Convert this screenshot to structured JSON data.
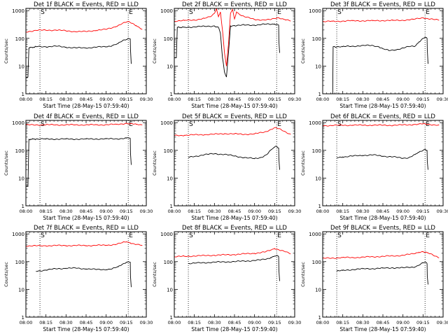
{
  "chart_data": [
    {
      "type": "line",
      "title": "Det 1f BLACK = Events, RED = LLD",
      "ylabel": "Counts/sec",
      "xlabel": "Start Time (28-May-15 07:59:40)",
      "x_ticks": [
        "08:00",
        "08:15",
        "08:30",
        "08:45",
        "09:00",
        "09:15",
        "09:30"
      ],
      "y_ticks": [
        "1",
        "10",
        "100",
        "1000"
      ],
      "yscale": "log",
      "ylim": [
        1,
        1200
      ],
      "xlim": [
        0,
        60
      ],
      "markers": [
        {
          "x": 7,
          "label": "S"
        },
        {
          "x": 51,
          "label": "E"
        }
      ],
      "series": [
        {
          "color": "#ff0000",
          "x": [
            0,
            5,
            10,
            15,
            20,
            25,
            30,
            35,
            40,
            45,
            48,
            51,
            53,
            55,
            58
          ],
          "values": [
            170,
            195,
            195,
            200,
            185,
            175,
            175,
            195,
            210,
            270,
            340,
            400,
            350,
            290,
            210
          ]
        },
        {
          "color": "#000000",
          "x": [
            0,
            1,
            1.5,
            5,
            10,
            15,
            20,
            25,
            30,
            35,
            40,
            43,
            46,
            48,
            50,
            51,
            52,
            52.1,
            52.5
          ],
          "values": [
            4,
            4,
            45,
            50,
            50,
            52,
            48,
            45,
            45,
            48,
            50,
            55,
            65,
            80,
            90,
            100,
            95,
            40,
            12
          ]
        }
      ]
    },
    {
      "type": "line",
      "title": "Det 2f BLACK = Events, RED = LLD",
      "ylabel": "Counts/sec",
      "xlabel": "Start Time (28-May-15 07:59:40)",
      "x_ticks": [
        "08:00",
        "08:15",
        "08:30",
        "08:45",
        "09:00",
        "09:15",
        "09:30"
      ],
      "y_ticks": [
        "1",
        "10",
        "100",
        "1000"
      ],
      "yscale": "log",
      "ylim": [
        1,
        1200
      ],
      "xlim": [
        0,
        60
      ],
      "markers": [
        {
          "x": 7,
          "label": "S"
        },
        {
          "x": 51,
          "label": "E"
        }
      ],
      "series": [
        {
          "color": "#ff0000",
          "x": [
            0,
            5,
            10,
            15,
            18,
            20,
            21,
            22,
            23,
            24,
            25,
            26,
            27,
            28,
            29,
            30,
            31,
            33,
            35,
            40,
            45,
            48,
            50,
            52,
            55,
            58
          ],
          "values": [
            420,
            440,
            460,
            520,
            600,
            800,
            1200,
            600,
            900,
            200,
            30,
            10,
            60,
            800,
            1100,
            500,
            900,
            700,
            600,
            480,
            460,
            470,
            520,
            560,
            480,
            420
          ]
        },
        {
          "color": "#000000",
          "x": [
            0,
            1,
            1.5,
            5,
            10,
            15,
            20,
            21,
            22,
            23,
            24,
            25,
            26,
            27,
            28,
            30,
            35,
            40,
            45,
            50,
            51,
            52,
            52.1,
            52.5
          ],
          "values": [
            20,
            20,
            250,
            250,
            260,
            270,
            280,
            260,
            250,
            150,
            20,
            6,
            4,
            30,
            280,
            290,
            300,
            300,
            320,
            330,
            320,
            300,
            80,
            30
          ]
        }
      ]
    },
    {
      "type": "line",
      "title": "Det 3f BLACK = Events, RED = LLD",
      "ylabel": "Counts/sec",
      "xlabel": "Start Time (28-May-15 07:59:40)",
      "x_ticks": [
        "08:00",
        "08:15",
        "08:30",
        "08:45",
        "09:00",
        "09:15",
        "09:30"
      ],
      "y_ticks": [
        "1",
        "10",
        "100",
        "1000"
      ],
      "yscale": "log",
      "ylim": [
        1,
        1200
      ],
      "xlim": [
        0,
        60
      ],
      "markers": [
        {
          "x": 7,
          "label": "S"
        },
        {
          "x": 51,
          "label": "E"
        }
      ],
      "series": [
        {
          "color": "#ff0000",
          "x": [
            0,
            5,
            10,
            15,
            20,
            25,
            30,
            35,
            40,
            45,
            48,
            50,
            52,
            55,
            58
          ],
          "values": [
            400,
            410,
            420,
            430,
            430,
            430,
            440,
            440,
            450,
            480,
            520,
            560,
            520,
            480,
            450
          ]
        },
        {
          "color": "#000000",
          "x": [
            5,
            5.2,
            6,
            10,
            15,
            20,
            25,
            28,
            30,
            33,
            36,
            40,
            43,
            46,
            48,
            50,
            51,
            52,
            52.1,
            52.5
          ],
          "values": [
            1,
            50,
            50,
            50,
            52,
            55,
            55,
            50,
            42,
            36,
            38,
            45,
            50,
            52,
            75,
            100,
            110,
            100,
            40,
            12
          ]
        }
      ]
    },
    {
      "type": "line",
      "title": "Det 4f BLACK = Events, RED = LLD",
      "ylabel": "Counts/sec",
      "xlabel": "Start Time (28-May-15 07:59:40)",
      "x_ticks": [
        "08:00",
        "08:15",
        "08:30",
        "08:45",
        "09:00",
        "09:15",
        "09:30"
      ],
      "y_ticks": [
        "1",
        "10",
        "100",
        "1000"
      ],
      "yscale": "log",
      "ylim": [
        1,
        1200
      ],
      "xlim": [
        0,
        60
      ],
      "markers": [
        {
          "x": 7,
          "label": "S"
        },
        {
          "x": 51,
          "label": "E"
        }
      ],
      "series": [
        {
          "color": "#ff0000",
          "x": [
            0,
            5,
            10,
            15,
            20,
            25,
            30,
            35,
            40,
            45,
            48,
            50,
            52,
            55,
            58
          ],
          "values": [
            820,
            830,
            830,
            830,
            830,
            830,
            830,
            830,
            840,
            860,
            900,
            950,
            900,
            860,
            830
          ]
        },
        {
          "color": "#000000",
          "x": [
            0,
            1,
            1.5,
            5,
            10,
            15,
            20,
            25,
            30,
            35,
            40,
            45,
            48,
            50,
            51,
            52,
            52.1,
            52.5
          ],
          "values": [
            5,
            5,
            250,
            255,
            255,
            255,
            255,
            255,
            255,
            258,
            258,
            262,
            265,
            275,
            280,
            270,
            80,
            30
          ]
        }
      ]
    },
    {
      "type": "line",
      "title": "Det 5f BLACK = Events, RED = LLD",
      "ylabel": "Counts/sec",
      "xlabel": "Start Time (28-May-15 07:59:40)",
      "x_ticks": [
        "08:00",
        "08:15",
        "08:30",
        "08:45",
        "09:00",
        "09:15",
        "09:30"
      ],
      "y_ticks": [
        "1",
        "10",
        "100",
        "1000"
      ],
      "yscale": "log",
      "ylim": [
        1,
        1200
      ],
      "xlim": [
        0,
        60
      ],
      "markers": [
        {
          "x": 7,
          "label": "S"
        },
        {
          "x": 51,
          "label": "E"
        }
      ],
      "series": [
        {
          "color": "#ff0000",
          "x": [
            0,
            5,
            10,
            15,
            20,
            25,
            30,
            35,
            40,
            45,
            48,
            50,
            52,
            55,
            58
          ],
          "values": [
            340,
            350,
            360,
            370,
            380,
            400,
            390,
            380,
            390,
            460,
            560,
            650,
            600,
            480,
            380
          ]
        },
        {
          "color": "#000000",
          "x": [
            7,
            10,
            15,
            20,
            25,
            30,
            35,
            40,
            43,
            46,
            48,
            50,
            51,
            52,
            52.1,
            52.5
          ],
          "values": [
            55,
            60,
            70,
            75,
            72,
            62,
            55,
            50,
            55,
            70,
            100,
            130,
            140,
            120,
            50,
            20
          ]
        }
      ]
    },
    {
      "type": "line",
      "title": "Det 6f BLACK = Events, RED = LLD",
      "ylabel": "Counts/sec",
      "xlabel": "Start Time (28-May-15 07:59:40)",
      "x_ticks": [
        "08:00",
        "08:15",
        "08:30",
        "08:45",
        "09:00",
        "09:15",
        "09:30"
      ],
      "y_ticks": [
        "1",
        "10",
        "100",
        "1000"
      ],
      "yscale": "log",
      "ylim": [
        1,
        1200
      ],
      "xlim": [
        0,
        60
      ],
      "markers": [
        {
          "x": 7,
          "label": "S"
        },
        {
          "x": 51,
          "label": "E"
        }
      ],
      "series": [
        {
          "color": "#ff0000",
          "x": [
            0,
            5,
            10,
            15,
            20,
            25,
            30,
            35,
            40,
            45,
            48,
            50,
            52,
            55,
            58
          ],
          "values": [
            780,
            790,
            800,
            810,
            800,
            810,
            800,
            800,
            820,
            850,
            880,
            900,
            870,
            840,
            810
          ]
        },
        {
          "color": "#000000",
          "x": [
            7,
            10,
            15,
            20,
            25,
            30,
            35,
            40,
            43,
            46,
            48,
            50,
            51,
            52,
            52.1,
            52.5
          ],
          "values": [
            55,
            58,
            62,
            66,
            68,
            62,
            58,
            52,
            55,
            70,
            85,
            100,
            110,
            100,
            40,
            20
          ]
        }
      ]
    },
    {
      "type": "line",
      "title": "Det 7f BLACK = Events, RED = LLD",
      "ylabel": "Counts/sec",
      "xlabel": "Start Time (28-May-15 07:59:40)",
      "x_ticks": [
        "08:00",
        "08:15",
        "08:30",
        "08:45",
        "09:00",
        "09:15",
        "09:30"
      ],
      "y_ticks": [
        "1",
        "10",
        "100",
        "1000"
      ],
      "yscale": "log",
      "ylim": [
        1,
        1200
      ],
      "xlim": [
        0,
        60
      ],
      "markers": [
        {
          "x": 7,
          "label": "S"
        },
        {
          "x": 51,
          "label": "E"
        }
      ],
      "series": [
        {
          "color": "#ff0000",
          "x": [
            0,
            5,
            10,
            15,
            20,
            25,
            30,
            35,
            40,
            45,
            48,
            50,
            52,
            55,
            58
          ],
          "values": [
            370,
            370,
            375,
            380,
            380,
            380,
            380,
            385,
            390,
            420,
            480,
            520,
            480,
            420,
            380
          ]
        },
        {
          "color": "#000000",
          "x": [
            5,
            10,
            15,
            20,
            25,
            30,
            35,
            40,
            43,
            46,
            48,
            50,
            51,
            52,
            52.1,
            52.5
          ],
          "values": [
            45,
            50,
            55,
            58,
            58,
            55,
            52,
            52,
            55,
            65,
            80,
            95,
            100,
            95,
            30,
            12
          ]
        }
      ]
    },
    {
      "type": "line",
      "title": "Det 8f BLACK = Events, RED = LLD",
      "ylabel": "Counts/sec",
      "xlabel": "Start Time (28-May-15 07:59:40)",
      "x_ticks": [
        "08:00",
        "08:15",
        "08:30",
        "08:45",
        "09:00",
        "09:15",
        "09:30"
      ],
      "y_ticks": [
        "1",
        "10",
        "100",
        "1000"
      ],
      "yscale": "log",
      "ylim": [
        1,
        1200
      ],
      "xlim": [
        0,
        60
      ],
      "markers": [
        {
          "x": 7,
          "label": "S"
        },
        {
          "x": 51,
          "label": "E"
        }
      ],
      "series": [
        {
          "color": "#ff0000",
          "x": [
            0,
            5,
            10,
            15,
            20,
            25,
            30,
            35,
            40,
            45,
            48,
            50,
            52,
            55,
            58
          ],
          "values": [
            150,
            155,
            160,
            165,
            170,
            175,
            180,
            190,
            200,
            220,
            260,
            300,
            270,
            230,
            190
          ]
        },
        {
          "color": "#000000",
          "x": [
            7,
            10,
            15,
            20,
            25,
            30,
            35,
            40,
            43,
            46,
            48,
            50,
            51,
            52,
            52.1,
            52.5
          ],
          "values": [
            85,
            88,
            92,
            95,
            98,
            100,
            105,
            110,
            115,
            125,
            140,
            160,
            165,
            150,
            50,
            20
          ]
        }
      ]
    },
    {
      "type": "line",
      "title": "Det 9f BLACK = Events, RED = LLD",
      "ylabel": "Counts/sec",
      "xlabel": "Start Time (28-May-15 07:59:40)",
      "x_ticks": [
        "08:00",
        "08:15",
        "08:30",
        "08:45",
        "09:00",
        "09:15",
        "09:30"
      ],
      "y_ticks": [
        "1",
        "10",
        "100",
        "1000"
      ],
      "yscale": "log",
      "ylim": [
        1,
        1200
      ],
      "xlim": [
        0,
        60
      ],
      "markers": [
        {
          "x": 7,
          "label": "S"
        },
        {
          "x": 51,
          "label": "E"
        }
      ],
      "series": [
        {
          "color": "#ff0000",
          "x": [
            0,
            5,
            10,
            15,
            20,
            25,
            30,
            35,
            40,
            45,
            48,
            50,
            52,
            55,
            58
          ],
          "values": [
            130,
            135,
            140,
            140,
            145,
            150,
            155,
            160,
            170,
            190,
            220,
            230,
            210,
            170,
            140
          ]
        },
        {
          "color": "#000000",
          "x": [
            7,
            10,
            15,
            20,
            25,
            30,
            35,
            40,
            43,
            46,
            48,
            50,
            51,
            52,
            52.1,
            52.5
          ],
          "values": [
            45,
            48,
            52,
            55,
            56,
            58,
            60,
            60,
            62,
            65,
            75,
            90,
            95,
            85,
            30,
            15
          ]
        }
      ]
    }
  ]
}
